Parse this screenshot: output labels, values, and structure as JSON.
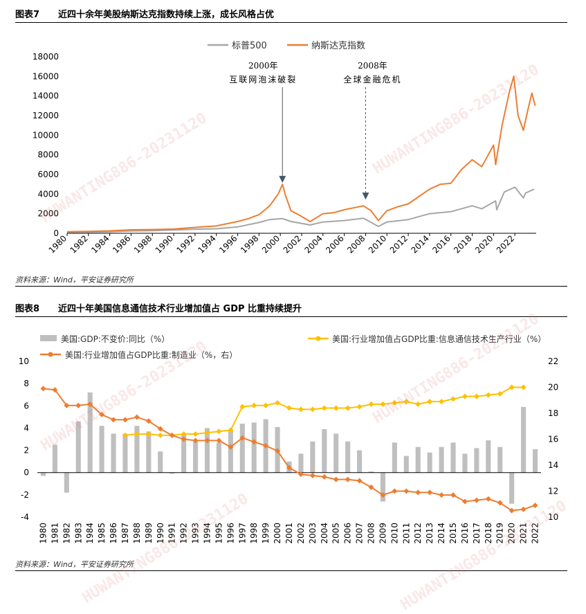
{
  "fig7": {
    "label": "图表7",
    "title": "近四十余年美股纳斯达克指数持续上涨，成长风格占优",
    "source": "资料来源：Wind，平安证券研究所"
  },
  "fig8": {
    "label": "图表8",
    "title": "近四十年美国信息通信技术行业增加值占 GDP 比重持续提升",
    "source": "资料来源：Wind，平安证券研究所"
  },
  "watermark": "HUWANTING886-20231120",
  "colors": {
    "sp500": "#A6A6A6",
    "nasdaq": "#ED7D31",
    "gdp_bar": "#BFBFBF",
    "ict": "#FFC000",
    "mfg": "#ED7D31"
  },
  "chart_data": [
    {
      "type": "line",
      "title": "近四十余年美股纳斯达克指数持续上涨，成长风格占优",
      "legend": [
        "标普500",
        "纳斯达克指数"
      ],
      "x_ticks": [
        "1980",
        "1982",
        "1984",
        "1986",
        "1988",
        "1990",
        "1992",
        "1994",
        "1996",
        "1998",
        "2000",
        "2002",
        "2004",
        "2006",
        "2008",
        "2010",
        "2012",
        "2014",
        "2016",
        "2018",
        "2020",
        "2022"
      ],
      "ylim": [
        0,
        18000
      ],
      "y_ticks": [
        "0",
        "2000",
        "4000",
        "6000",
        "8000",
        "10000",
        "12000",
        "14000",
        "16000",
        "18000"
      ],
      "annotations": [
        {
          "year": "2000年",
          "text": "互联网泡沫破裂",
          "x": 2000.2,
          "y": 5000
        },
        {
          "year": "2008年",
          "text": "全球金融危机",
          "x": 2008.0,
          "y": 3300
        }
      ],
      "series": [
        {
          "name": "标普500",
          "x": [
            1980,
            1982,
            1984,
            1986,
            1988,
            1990,
            1992,
            1994,
            1996,
            1998,
            1999,
            2000.2,
            2001,
            2002.8,
            2004,
            2006,
            2007.8,
            2009.2,
            2010,
            2012,
            2014,
            2016,
            2018,
            2018.9,
            2020.2,
            2020.3,
            2021,
            2022,
            2022.8,
            2023,
            2023.8
          ],
          "values": [
            110,
            120,
            165,
            240,
            260,
            330,
            420,
            460,
            650,
            1100,
            1400,
            1500,
            1200,
            850,
            1150,
            1300,
            1530,
            700,
            1150,
            1400,
            2000,
            2200,
            2800,
            2500,
            3300,
            2400,
            4200,
            4700,
            3600,
            4100,
            4500
          ]
        },
        {
          "name": "纳斯达克指数",
          "x": [
            1980,
            1982,
            1984,
            1986,
            1988,
            1990,
            1992,
            1994,
            1996,
            1997,
            1998,
            1999,
            1999.8,
            2000.2,
            2000.5,
            2001,
            2001.7,
            2002.8,
            2004,
            2005,
            2006,
            2007.8,
            2008.5,
            2009.2,
            2010,
            2011,
            2012,
            2014,
            2015,
            2016,
            2017,
            2018,
            2018.9,
            2019.5,
            2020,
            2020.2,
            2020.8,
            2021.5,
            2021.9,
            2022.3,
            2022.8,
            2023.2,
            2023.6,
            2023.9
          ],
          "values": [
            160,
            190,
            250,
            350,
            380,
            430,
            600,
            750,
            1200,
            1500,
            1900,
            2800,
            4000,
            5000,
            3800,
            2300,
            1900,
            1200,
            2000,
            2100,
            2400,
            2800,
            2300,
            1300,
            2300,
            2700,
            3000,
            4500,
            5000,
            5100,
            6500,
            7500,
            6800,
            8000,
            9000,
            7000,
            11000,
            14500,
            16000,
            12000,
            10500,
            12500,
            14300,
            13000
          ]
        }
      ]
    },
    {
      "type": "bar",
      "title": "近四十年美国信息通信技术行业增加值占 GDP 比重持续提升",
      "categories": [
        "1980",
        "1981",
        "1982",
        "1983",
        "1984",
        "1985",
        "1986",
        "1987",
        "1988",
        "1989",
        "1990",
        "1991",
        "1992",
        "1993",
        "1994",
        "1995",
        "1996",
        "1997",
        "1998",
        "1999",
        "2000",
        "2001",
        "2002",
        "2003",
        "2004",
        "2005",
        "2006",
        "2007",
        "2008",
        "2009",
        "2010",
        "2011",
        "2012",
        "2013",
        "2014",
        "2015",
        "2016",
        "2017",
        "2018",
        "2019",
        "2020",
        "2021",
        "2022"
      ],
      "ylim_left": [
        -4,
        10
      ],
      "ylim_right": [
        10,
        22
      ],
      "y_ticks_left": [
        "-4",
        "-2",
        "0",
        "2",
        "4",
        "6",
        "8",
        "10"
      ],
      "y_ticks_right": [
        "10",
        "12",
        "14",
        "16",
        "18",
        "20",
        "22"
      ],
      "series": [
        {
          "name": "美国:GDP:不变价:同比（%）",
          "kind": "bar",
          "axis": "left",
          "values": [
            -0.3,
            2.5,
            -1.8,
            4.6,
            7.2,
            4.2,
            3.5,
            3.5,
            4.2,
            3.7,
            1.9,
            -0.1,
            3.5,
            2.8,
            4.0,
            2.7,
            3.8,
            4.4,
            4.5,
            4.8,
            4.1,
            1.0,
            1.7,
            2.8,
            3.9,
            3.5,
            2.8,
            2.0,
            0.1,
            -2.6,
            2.7,
            1.5,
            2.3,
            1.8,
            2.3,
            2.7,
            1.7,
            2.2,
            2.9,
            2.3,
            -2.8,
            5.9,
            2.1
          ]
        },
        {
          "name": "美国:行业增加值占GDP比重:信息通信技术生产行业（%）",
          "kind": "line",
          "axis": "right",
          "values": [
            null,
            null,
            null,
            null,
            null,
            null,
            null,
            16.3,
            16.4,
            16.4,
            16.3,
            16.3,
            16.4,
            16.4,
            16.5,
            16.6,
            16.7,
            18.5,
            18.6,
            18.6,
            18.8,
            18.4,
            18.3,
            18.3,
            18.4,
            18.4,
            18.4,
            18.5,
            18.7,
            18.7,
            18.8,
            18.9,
            18.7,
            18.9,
            18.9,
            19.1,
            19.3,
            19.3,
            19.4,
            19.5,
            20.0,
            20.0,
            null
          ]
        },
        {
          "name": "美国:行业增加值占GDP比重:制造业（%，右）",
          "kind": "line",
          "axis": "right",
          "values": [
            19.9,
            19.8,
            18.6,
            18.6,
            18.7,
            17.9,
            17.5,
            17.5,
            17.7,
            17.4,
            16.8,
            16.3,
            16.0,
            15.9,
            15.9,
            15.9,
            15.4,
            16.1,
            15.8,
            15.5,
            15.1,
            13.8,
            13.3,
            13.2,
            13.1,
            12.9,
            12.9,
            12.8,
            12.3,
            11.7,
            12.0,
            12.0,
            11.9,
            11.9,
            11.7,
            11.7,
            11.2,
            11.3,
            11.4,
            11.1,
            10.5,
            10.6,
            10.9
          ]
        }
      ]
    }
  ]
}
